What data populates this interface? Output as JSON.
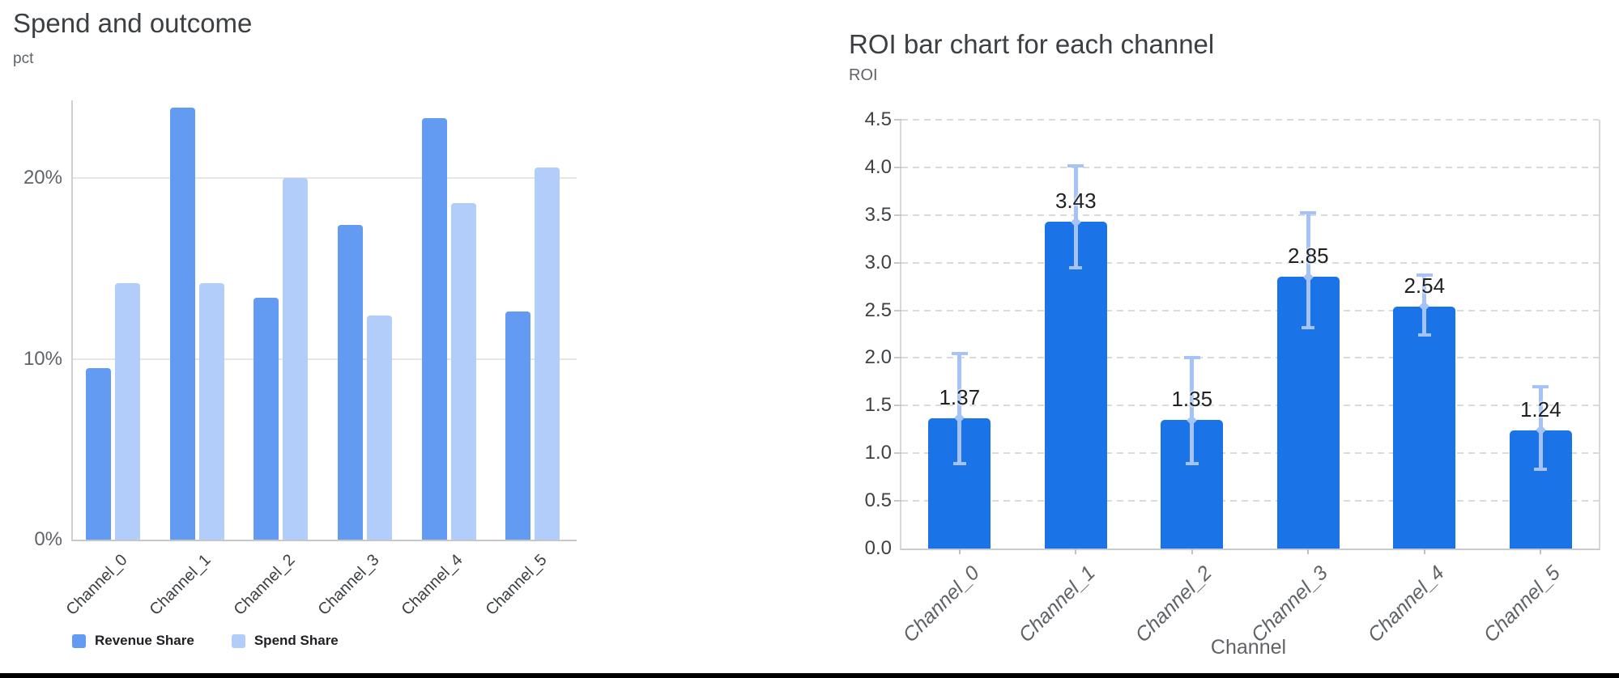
{
  "page": {
    "background": "#ffffff",
    "bottom_border_color": "#000000"
  },
  "chart_data": [
    {
      "type": "bar",
      "title": "Spend and outcome",
      "ylabel": "pct",
      "xlabel": "",
      "categories": [
        "Channel_0",
        "Channel_1",
        "Channel_2",
        "Channel_3",
        "Channel_4",
        "Channel_5"
      ],
      "series": [
        {
          "name": "Revenue Share",
          "color": "#639af2",
          "values": [
            9.5,
            23.9,
            13.4,
            17.4,
            23.3,
            12.6
          ]
        },
        {
          "name": "Spend Share",
          "color": "#b2cdfa",
          "values": [
            14.2,
            14.2,
            20.0,
            12.4,
            18.6,
            20.6
          ]
        }
      ],
      "yticks": [
        {
          "label": "0%",
          "value": 0
        },
        {
          "label": "10%",
          "value": 10
        },
        {
          "label": "20%",
          "value": 20
        }
      ],
      "ylim": [
        0,
        24.3
      ],
      "grid": "solid-horizontal",
      "legend_position": "bottom"
    },
    {
      "type": "bar",
      "title": "ROI bar chart for each channel",
      "ylabel": "ROI",
      "xlabel": "Channel",
      "categories": [
        "Channel_0",
        "Channel_1",
        "Channel_2",
        "Channel_3",
        "Channel_4",
        "Channel_5"
      ],
      "values": [
        1.37,
        3.43,
        1.35,
        2.85,
        2.54,
        1.24
      ],
      "data_labels": [
        "1.37",
        "3.43",
        "1.35",
        "2.85",
        "2.54",
        "1.24"
      ],
      "error_low": [
        0.89,
        2.95,
        0.89,
        2.32,
        2.24,
        0.83
      ],
      "error_high": [
        2.05,
        4.02,
        2.0,
        3.52,
        2.87,
        1.7
      ],
      "bar_color": "#1b73e8",
      "error_color": "#a5c3f7",
      "yticks": [
        "0.0",
        "0.5",
        "1.0",
        "1.5",
        "2.0",
        "2.5",
        "3.0",
        "3.5",
        "4.0",
        "4.5"
      ],
      "ylim": [
        0,
        4.5
      ],
      "grid": "dashed-horizontal",
      "legend_position": "none"
    }
  ]
}
